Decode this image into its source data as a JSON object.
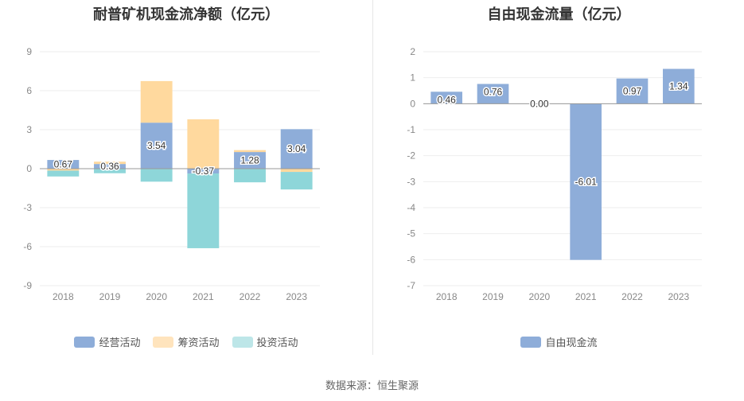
{
  "source": "数据来源：恒生聚源",
  "chart_data": [
    {
      "type": "bar",
      "stacked": true,
      "title": "耐普矿机现金流净额（亿元）",
      "categories": [
        "2018",
        "2019",
        "2020",
        "2021",
        "2022",
        "2023"
      ],
      "ylim": [
        -9,
        9
      ],
      "yticks": [
        9,
        6,
        3,
        0,
        -3,
        -6,
        -9
      ],
      "grid": true,
      "legend_position": "bottom",
      "series": [
        {
          "name": "经营活动",
          "color": "#8eadd9",
          "values": [
            0.67,
            0.36,
            3.54,
            -0.37,
            1.28,
            3.04
          ],
          "show_labels": true
        },
        {
          "name": "筹资活动",
          "color": "#ffd99e",
          "values": [
            -0.15,
            0.18,
            3.2,
            3.8,
            0.15,
            -0.25
          ],
          "show_labels": false
        },
        {
          "name": "投资活动",
          "color": "#8ed6d9",
          "values": [
            -0.45,
            -0.35,
            -1.0,
            -5.75,
            -1.05,
            -1.35
          ],
          "show_labels": false
        }
      ]
    },
    {
      "type": "bar",
      "title": "自由现金流量（亿元）",
      "categories": [
        "2018",
        "2019",
        "2020",
        "2021",
        "2022",
        "2023"
      ],
      "ylim": [
        -7,
        2
      ],
      "yticks": [
        2,
        1,
        0,
        -1,
        -2,
        -3,
        -4,
        -5,
        -6,
        -7
      ],
      "grid": true,
      "legend_position": "bottom",
      "series": [
        {
          "name": "自由现金流",
          "color": "#8eadd9",
          "values": [
            0.46,
            0.76,
            0.0,
            -6.01,
            0.97,
            1.34
          ],
          "labels": [
            "0.46",
            "0.76",
            "0.00",
            "-6.01",
            "0.97",
            "1.34"
          ]
        }
      ]
    }
  ]
}
